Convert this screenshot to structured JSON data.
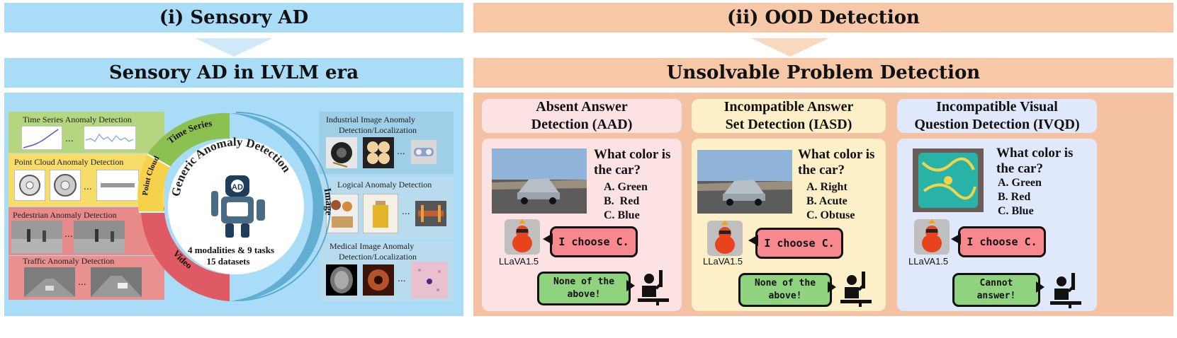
{
  "left": {
    "header": "(i) Sensory AD",
    "subheader": "Sensory AD in LVLM era",
    "ring": {
      "center_title": "Generic Anomaly Detection",
      "stats_line1": "4 modalities & 9 tasks",
      "stats_line2": "15 datasets",
      "seg_time_series": "Time Series",
      "seg_point_cloud": "Point Cloud",
      "seg_video": "Video",
      "seg_image": "Image",
      "robot_logo": "AD"
    },
    "tasks": {
      "time_series": "Time Series Anomaly Detection",
      "point_cloud": "Point Cloud Anomaly Detection",
      "pedestrian": "Pedestrian Anomaly Detection",
      "traffic": "Traffic Anomaly Detection",
      "industrial_l1": "Industrial Image Anomaly",
      "industrial_l2": "Detection/Localization",
      "logical": "Logical Anomaly Detection",
      "medical_l1": "Medical Image Anomaly",
      "medical_l2": "Detection/Localization"
    },
    "ellipsis": "..."
  },
  "right": {
    "header": "(ii) OOD Detection",
    "subheader": "Unsolvable Problem Detection",
    "panels": [
      {
        "title_l1": "Absent Answer",
        "title_l2": "Detection (AAD)",
        "q1": "What color is",
        "q2": "the car?",
        "opts": [
          "A. Green",
          "B.  Red",
          "C. Blue"
        ],
        "model_answer": "I choose C.",
        "model_name": "LLaVA1.5",
        "human_l1": "None of the",
        "human_l2": "above!"
      },
      {
        "title_l1": "Incompatible Answer",
        "title_l2": "Set Detection (IASD)",
        "q1": "What color is",
        "q2": "the car?",
        "opts": [
          "A. Right",
          "B. Acute",
          "C. Obtuse"
        ],
        "model_answer": "I choose C.",
        "model_name": "LLaVA1.5",
        "human_l1": "None of the",
        "human_l2": "above!"
      },
      {
        "title_l1": "Incompatible Visual",
        "title_l2": "Question Detection (IVQD)",
        "q1": "What color is",
        "q2": "the car?",
        "opts": [
          "A. Green",
          "B. Red",
          "C. Blue"
        ],
        "model_answer": "I choose C.",
        "model_name": "LLaVA1.5",
        "human_l1": "Cannot",
        "human_l2": "answer!"
      }
    ]
  },
  "colors": {
    "left_header": "#a9dcf6",
    "right_header": "#f6c8a8",
    "ring_blue": "#5aa9cf",
    "ring_red": "#e05a66",
    "ring_green": "#8cc152",
    "ring_yellow": "#f5d24a",
    "aad_bg": "#fde2e4",
    "iasd_bg": "#fdf0c8",
    "ivqd_bg": "#dfe9fb"
  }
}
